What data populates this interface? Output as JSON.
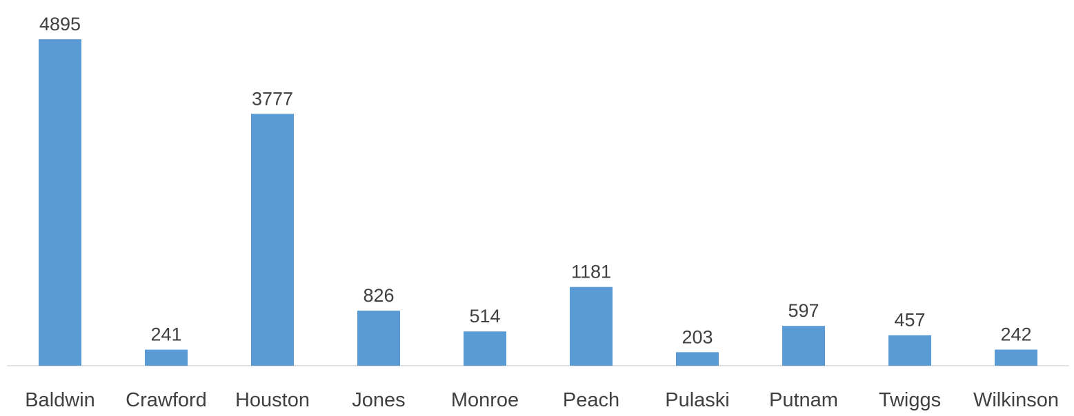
{
  "chart_data": {
    "type": "bar",
    "title": "",
    "xlabel": "",
    "ylabel": "",
    "categories": [
      "Baldwin",
      "Crawford",
      "Houston",
      "Jones",
      "Monroe",
      "Peach",
      "Pulaski",
      "Putnam",
      "Twiggs",
      "Wilkinson"
    ],
    "values": [
      4895,
      241,
      3777,
      826,
      514,
      1181,
      203,
      597,
      457,
      242
    ],
    "ylim": [
      0,
      4895
    ],
    "grid": false,
    "data_labels": true,
    "colors": {
      "bar": "#5b9bd5",
      "axis": "#d9d9d9",
      "text": "#404040"
    }
  }
}
